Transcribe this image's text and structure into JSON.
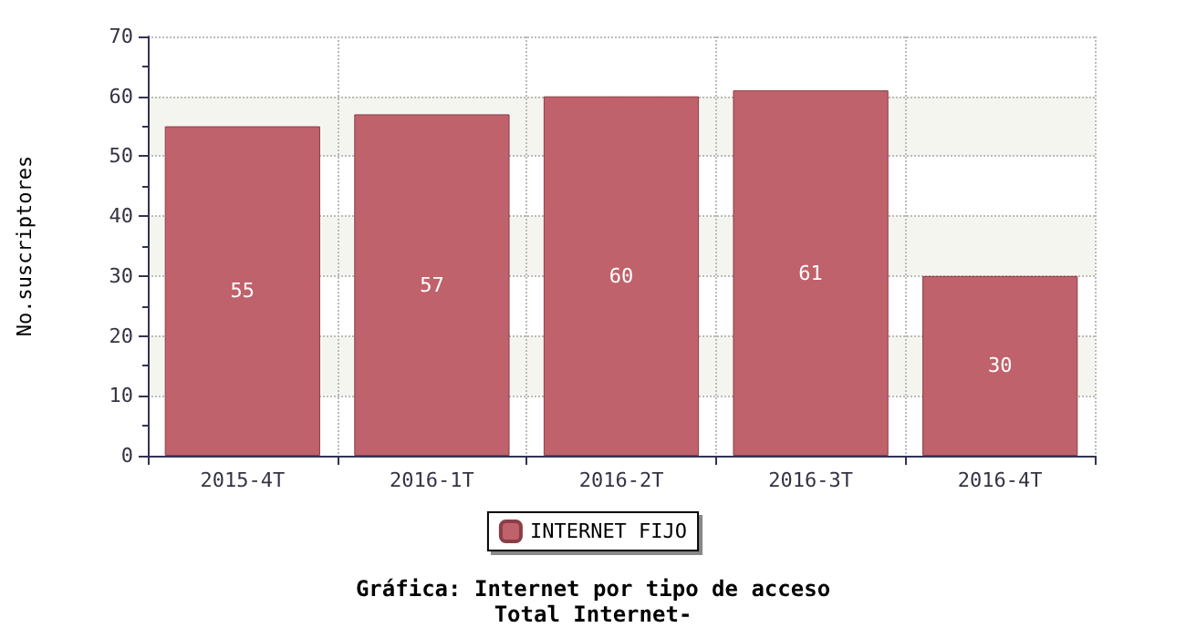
{
  "chart_data": {
    "type": "bar",
    "title": "Gráfica: Internet por tipo de acceso",
    "subtitle": "Total Internet-",
    "ylabel": "No.suscriptores",
    "categories": [
      "2015-4T",
      "2016-1T",
      "2016-2T",
      "2016-3T",
      "2016-4T"
    ],
    "series": [
      {
        "name": "INTERNET FIJO",
        "color": "#c0626b",
        "values": [
          55,
          57,
          60,
          61,
          30
        ]
      }
    ],
    "ylim": [
      0,
      70
    ],
    "yticks": [
      0,
      10,
      20,
      30,
      40,
      50,
      60,
      70
    ],
    "grid": true,
    "legend": "bottom",
    "data_labels": true
  }
}
